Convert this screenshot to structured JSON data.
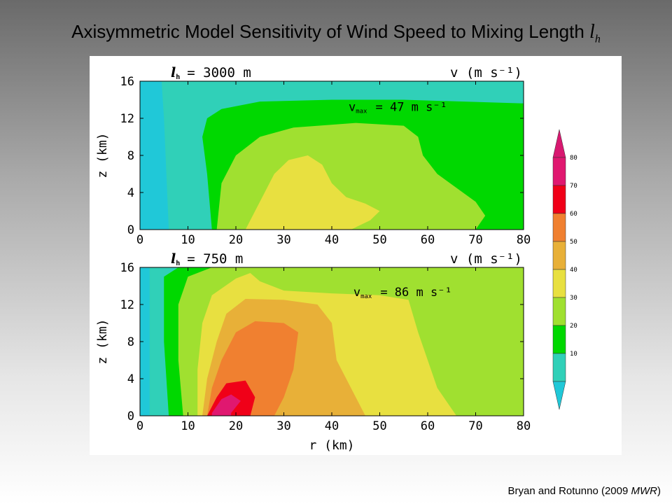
{
  "title": {
    "text": "Axisymmetric Model Sensitivity of Wind Speed to Mixing Length",
    "symbol": "l",
    "symbol_sub": "h"
  },
  "citation": {
    "prefix": "Bryan and Rotunno (2009 ",
    "journal": "MWR",
    "suffix": ")"
  },
  "chart_data": [
    {
      "type": "heatmap",
      "panel": "top",
      "label_prefix": "l",
      "label_sub": "h",
      "label_value": "= 3000 m",
      "field_label": "v (m s⁻¹)",
      "vmax_prefix": "v",
      "vmax_sub": "max",
      "vmax_value": "= 47 m s⁻¹",
      "vmax": 47,
      "xlabel": "",
      "ylabel": "z (km)",
      "xlim": [
        0,
        80
      ],
      "ylim": [
        0,
        16
      ],
      "x_ticks": [
        0,
        10,
        20,
        30,
        40,
        50,
        60,
        70,
        80
      ],
      "y_ticks": [
        0,
        4,
        8,
        12,
        16
      ],
      "contours": [
        {
          "min": 10,
          "max": 20,
          "boundary": [
            [
              6,
              0
            ],
            [
              5.5,
              6
            ],
            [
              5,
              12
            ],
            [
              4.5,
              16
            ]
          ]
        },
        {
          "min": 20,
          "max": 30,
          "boundary": [
            [
              15,
              0
            ],
            [
              14,
              6
            ],
            [
              13,
              10
            ],
            [
              14,
              12
            ],
            [
              17,
              13
            ],
            [
              25,
              13.8
            ],
            [
              40,
              14
            ],
            [
              55,
              14
            ],
            [
              80,
              13.6
            ]
          ]
        },
        {
          "min": 30,
          "max": 40,
          "boundary": [
            [
              16,
              0
            ],
            [
              17,
              5
            ],
            [
              20,
              8
            ],
            [
              25,
              10
            ],
            [
              32,
              11
            ],
            [
              45,
              11.5
            ],
            [
              55,
              11.2
            ],
            [
              58,
              10
            ],
            [
              59,
              8
            ],
            [
              62,
              6
            ],
            [
              70,
              3
            ],
            [
              72,
              1.5
            ],
            [
              70,
              0
            ]
          ]
        },
        {
          "min": 40,
          "max": 50,
          "boundary": [
            [
              22,
              0
            ],
            [
              25,
              3
            ],
            [
              28,
              6
            ],
            [
              31,
              7.5
            ],
            [
              35,
              8
            ],
            [
              38,
              7
            ],
            [
              40,
              5
            ],
            [
              43,
              3.5
            ],
            [
              47,
              2.8
            ],
            [
              50,
              2
            ],
            [
              48,
              1
            ],
            [
              44,
              0
            ]
          ]
        }
      ]
    },
    {
      "type": "heatmap",
      "panel": "bottom",
      "label_prefix": "l",
      "label_sub": "h",
      "label_value": "= 750 m",
      "field_label": "v (m s⁻¹)",
      "vmax_prefix": "v",
      "vmax_sub": "max",
      "vmax_value": "= 86 m s⁻¹",
      "vmax": 86,
      "xlabel": "r (km)",
      "ylabel": "z (km)",
      "xlim": [
        0,
        80
      ],
      "ylim": [
        0,
        16
      ],
      "x_ticks": [
        0,
        10,
        20,
        30,
        40,
        50,
        60,
        70,
        80
      ],
      "y_ticks": [
        0,
        4,
        8,
        12,
        16
      ],
      "contours": [
        {
          "min": 10,
          "max": 20,
          "boundary": [
            [
              2,
              0
            ],
            [
              2,
              8
            ],
            [
              2,
              16
            ]
          ]
        },
        {
          "min": 20,
          "max": 30,
          "boundary": [
            [
              6,
              0
            ],
            [
              5,
              8
            ],
            [
              5,
              15
            ],
            [
              8,
              16
            ]
          ]
        },
        {
          "min": 30,
          "max": 40,
          "boundary": [
            [
              9,
              0
            ],
            [
              8,
              6
            ],
            [
              8,
              12
            ],
            [
              10,
              15
            ],
            [
              15,
              16
            ]
          ]
        },
        {
          "min": 40,
          "max": 50,
          "boundary": [
            [
              12,
              0
            ],
            [
              12,
              5
            ],
            [
              13,
              10
            ],
            [
              15,
              13
            ],
            [
              20,
              14.8
            ],
            [
              23,
              15.4
            ],
            [
              25,
              14.5
            ],
            [
              30,
              13.5
            ],
            [
              40,
              13.2
            ],
            [
              50,
              13
            ],
            [
              56,
              12.5
            ],
            [
              58,
              9
            ],
            [
              60,
              6
            ],
            [
              62,
              3
            ],
            [
              66,
              0
            ]
          ]
        },
        {
          "min": 50,
          "max": 60,
          "boundary": [
            [
              13,
              0
            ],
            [
              14,
              4
            ],
            [
              16,
              8
            ],
            [
              18,
              11
            ],
            [
              22,
              12.6
            ],
            [
              30,
              12.5
            ],
            [
              37,
              12
            ],
            [
              40,
              10
            ],
            [
              41,
              6
            ],
            [
              45,
              2
            ],
            [
              47,
              0
            ]
          ]
        },
        {
          "min": 60,
          "max": 70,
          "boundary": [
            [
              14,
              0
            ],
            [
              15,
              3
            ],
            [
              17,
              6
            ],
            [
              20,
              9
            ],
            [
              24,
              10.2
            ],
            [
              30,
              10
            ],
            [
              33,
              9
            ],
            [
              32,
              5
            ],
            [
              30,
              2
            ],
            [
              28,
              0
            ]
          ]
        },
        {
          "min": 70,
          "max": 80,
          "boundary": [
            [
              14,
              0
            ],
            [
              16,
              2
            ],
            [
              18,
              3.5
            ],
            [
              22,
              3.8
            ],
            [
              24,
              2
            ],
            [
              23,
              0
            ]
          ]
        },
        {
          "min": 80,
          "max": 90,
          "boundary": [
            [
              15,
              0.3
            ],
            [
              17,
              1.8
            ],
            [
              19,
              2.3
            ],
            [
              21,
              1.6
            ],
            [
              19,
              0.3
            ]
          ]
        }
      ]
    },
    {
      "type": "colorbar",
      "levels": [
        10,
        20,
        30,
        40,
        50,
        60,
        70,
        80
      ],
      "colors": [
        "#30d0b8",
        "#00d800",
        "#a0e030",
        "#e8e040",
        "#e8b038",
        "#f08030",
        "#f00018",
        "#e01870"
      ],
      "under_color": "#20c8d8",
      "over_color": "#d81870"
    }
  ],
  "palette": {
    "background_cyan": "#20c8d8",
    "green_light": "#30d0b8"
  }
}
